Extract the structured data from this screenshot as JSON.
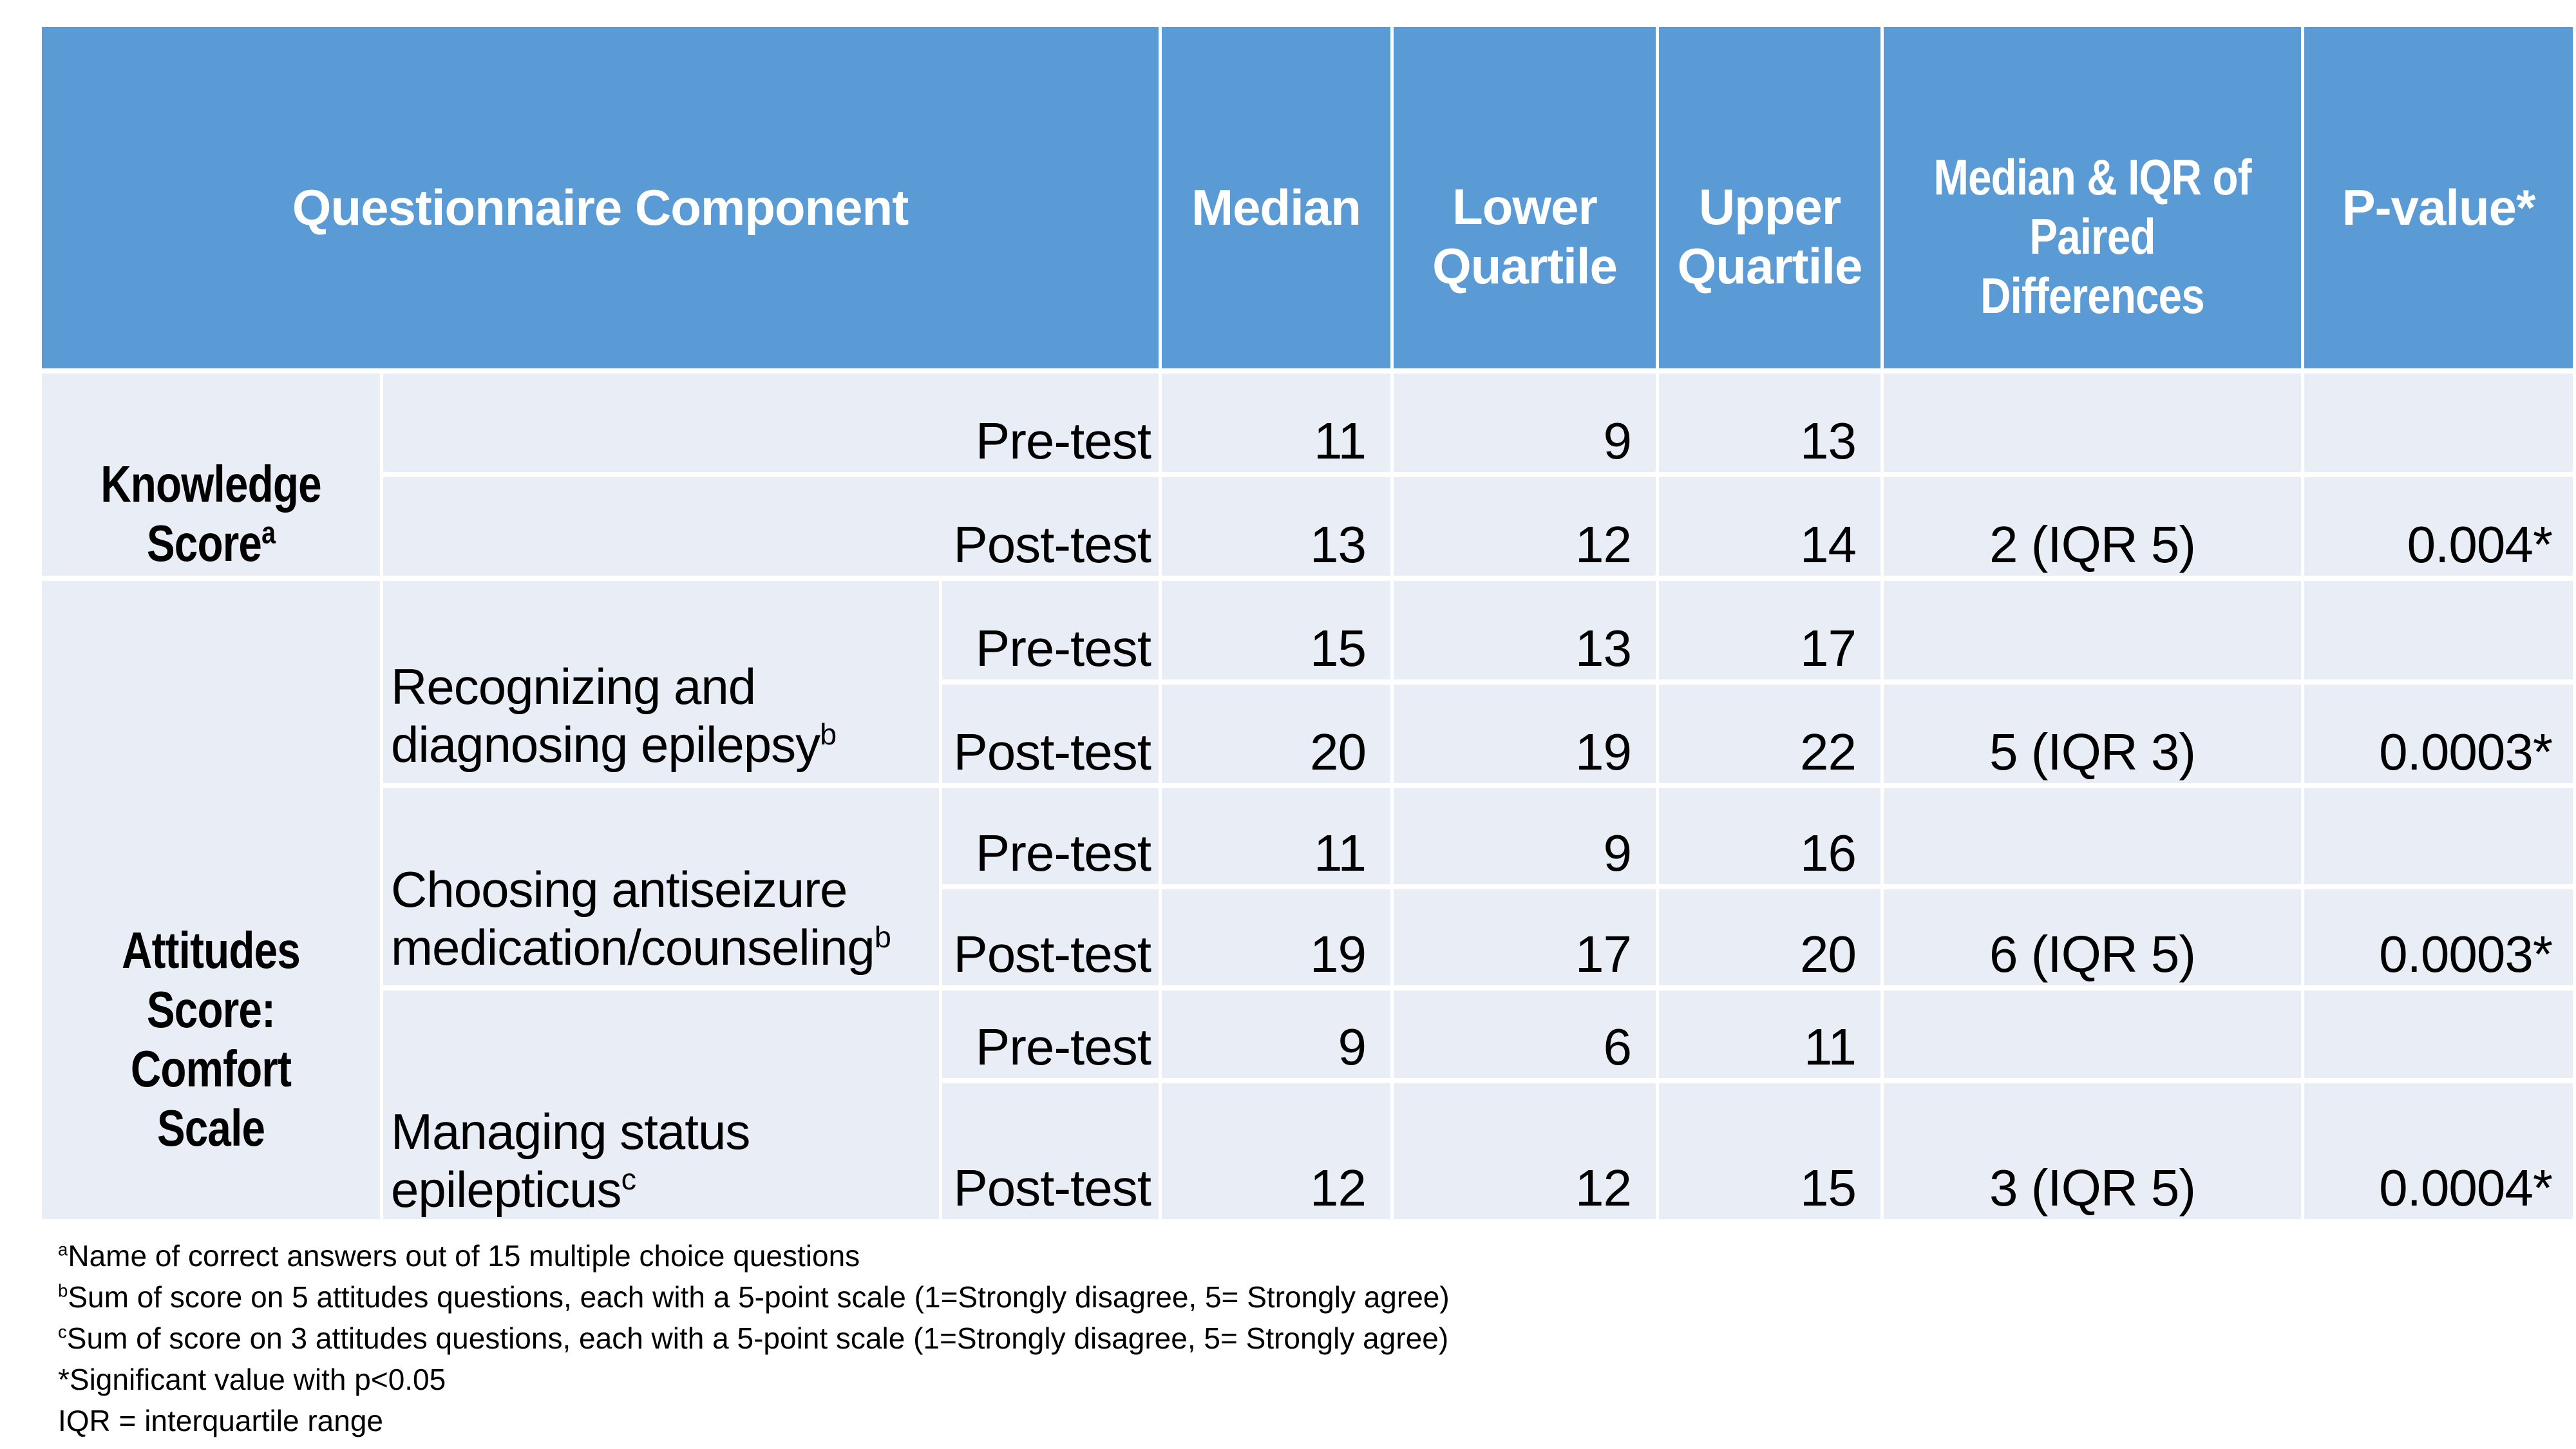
{
  "colors": {
    "header_bg": "#5B9BD5",
    "header_text": "#FFFFFF",
    "body_cell_bg": "#E9EDF6",
    "body_text": "#000000",
    "grid_line": "#FFFFFF",
    "page_bg": "#FFFFFF"
  },
  "table": {
    "header": {
      "component": "Questionnaire Component",
      "median": "Median",
      "lower_quartile": "Lower\nQuartile",
      "upper_quartile": "Upper\nQuartile",
      "paired_diff": "Median & IQR of\nPaired Differences",
      "p_value": "P-value*"
    },
    "knowledge": {
      "label": "Knowledge\nScore^a^",
      "pre": {
        "test": "Pre-test",
        "median": "11",
        "lower": "9",
        "upper": "13",
        "diff": "",
        "p": ""
      },
      "post": {
        "test": "Post-test",
        "median": "13",
        "lower": "12",
        "upper": "14",
        "diff": "2 (IQR 5)",
        "p": "0.004*"
      }
    },
    "attitudes": {
      "label": "Attitudes\nScore: Comfort\nScale",
      "subscales": [
        {
          "label": "Recognizing and\ndiagnosing epilepsy^b^",
          "pre": {
            "test": "Pre-test",
            "median": "15",
            "lower": "13",
            "upper": "17",
            "diff": "",
            "p": ""
          },
          "post": {
            "test": "Post-test",
            "median": "20",
            "lower": "19",
            "upper": "22",
            "diff": "5 (IQR 3)",
            "p": "0.0003*"
          }
        },
        {
          "label": "Choosing antiseizure\nmedication/counseling^b^",
          "pre": {
            "test": "Pre-test",
            "median": "11",
            "lower": "9",
            "upper": "16",
            "diff": "",
            "p": ""
          },
          "post": {
            "test": "Post-test",
            "median": "19",
            "lower": "17",
            "upper": "20",
            "diff": "6 (IQR 5)",
            "p": "0.0003*"
          }
        },
        {
          "label": "Managing status\nepilepticus^c^",
          "pre": {
            "test": "Pre-test",
            "median": "9",
            "lower": "6",
            "upper": "11",
            "diff": "",
            "p": ""
          },
          "post": {
            "test": "Post-test",
            "median": "12",
            "lower": "12",
            "upper": "15",
            "diff": "3 (IQR 5)",
            "p": "0.0004*"
          }
        }
      ]
    }
  },
  "footnotes": [
    "^a^Name of correct answers out of 15 multiple choice questions",
    "^b^Sum of score on 5 attitudes questions, each with a 5-point scale (1=Strongly disagree, 5= Strongly agree)",
    "^c^Sum of score on 3 attitudes questions, each with a 5-point scale (1=Strongly disagree, 5= Strongly agree)",
    "*Significant value with p<0.05",
    "IQR = interquartile range"
  ]
}
